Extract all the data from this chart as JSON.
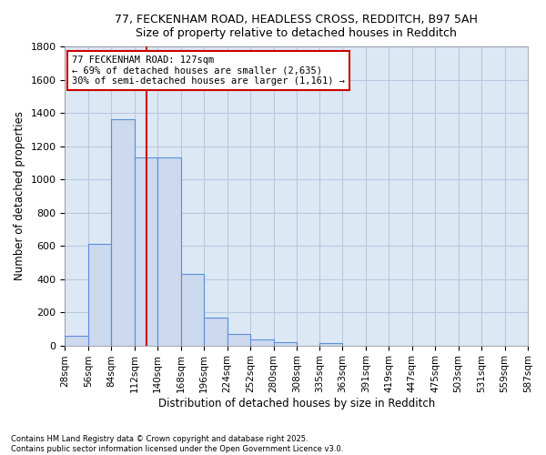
{
  "title_line1": "77, FECKENHAM ROAD, HEADLESS CROSS, REDDITCH, B97 5AH",
  "title_line2": "Size of property relative to detached houses in Redditch",
  "xlabel": "Distribution of detached houses by size in Redditch",
  "ylabel": "Number of detached properties",
  "bin_edges": [
    28,
    56,
    84,
    112,
    140,
    168,
    196,
    224,
    252,
    280,
    308,
    335,
    363,
    391,
    419,
    447,
    475,
    503,
    531,
    559,
    587
  ],
  "bin_counts": [
    60,
    610,
    1360,
    1130,
    1130,
    430,
    170,
    70,
    35,
    20,
    0,
    15,
    0,
    0,
    0,
    0,
    0,
    0,
    0,
    0
  ],
  "bar_color": "#ccd9ee",
  "bar_edge_color": "#5b8dd9",
  "grid_color": "#b8c8e0",
  "background_color": "#dde8f5",
  "vline_x": 127,
  "vline_color": "#cc0000",
  "ylim": [
    0,
    1800
  ],
  "yticks": [
    0,
    200,
    400,
    600,
    800,
    1000,
    1200,
    1400,
    1600,
    1800
  ],
  "annotation_title": "77 FECKENHAM ROAD: 127sqm",
  "annotation_line1": "← 69% of detached houses are smaller (2,635)",
  "annotation_line2": "30% of semi-detached houses are larger (1,161) →",
  "annotation_box_color": "white",
  "annotation_edge_color": "#cc0000",
  "footnote_line1": "Contains HM Land Registry data © Crown copyright and database right 2025.",
  "footnote_line2": "Contains public sector information licensed under the Open Government Licence v3.0."
}
